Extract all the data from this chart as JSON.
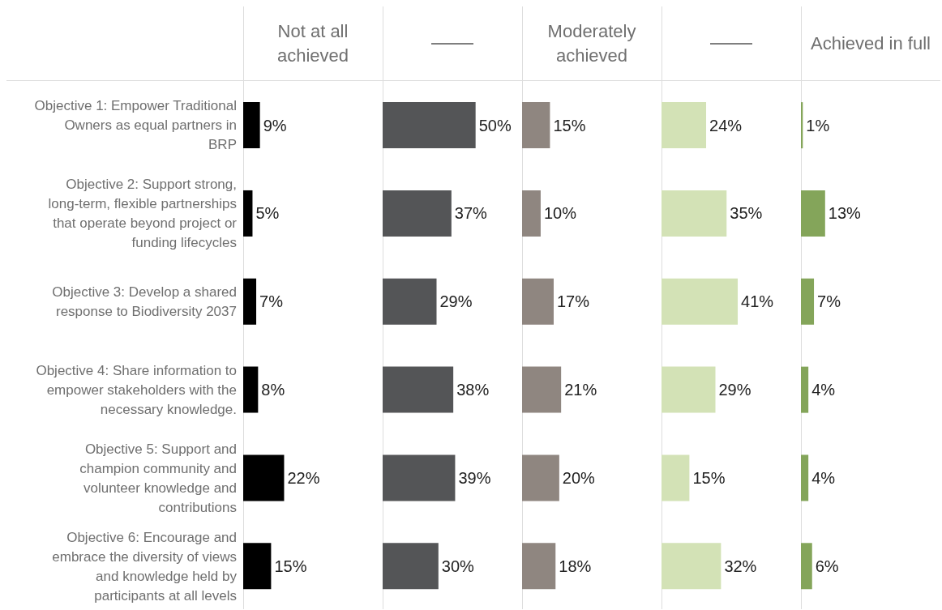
{
  "chart_data": [
    {
      "type": "bar",
      "orientation": "horizontal",
      "title": "Not at all achieved",
      "tick_labels": "y",
      "categories": [
        "Objective 1: Empower Traditional Owners as equal partners in BRP",
        "Objective 2: Support strong, long-term, flexible partnerships that operate beyond project or funding lifecycles",
        "Objective 3: Develop a shared response to Biodiversity 2037",
        "Objective 4: Share information to empower stakeholders with the necessary knowledge.",
        "Objective 5: Support and champion community and volunteer knowledge and contributions",
        "Objective 6: Encourage and embrace the diversity of views and knowledge held by participants at all levels"
      ],
      "values": [
        9,
        5,
        7,
        8,
        22,
        15
      ],
      "value_labels": [
        "9%",
        "5%",
        "7%",
        "8%",
        "22%",
        "15%"
      ],
      "color": "#000000",
      "xlim": [
        0,
        75
      ]
    },
    {
      "type": "bar",
      "orientation": "horizontal",
      "tick_labels": false,
      "values": [
        50,
        37,
        29,
        38,
        39,
        30
      ],
      "value_labels": [
        "50%",
        "37%",
        "29%",
        "38%",
        "39%",
        "30%"
      ],
      "color": "#545557",
      "xlim": [
        0,
        75
      ]
    },
    {
      "type": "bar",
      "orientation": "horizontal",
      "title": "Moderately achieved",
      "tick_labels": false,
      "values": [
        15,
        10,
        17,
        21,
        20,
        18
      ],
      "value_labels": [
        "15%",
        "10%",
        "17%",
        "21%",
        "20%",
        "18%"
      ],
      "color": "#8f8680",
      "xlim": [
        0,
        75
      ]
    },
    {
      "type": "bar",
      "orientation": "horizontal",
      "tick_labels": false,
      "values": [
        24,
        35,
        41,
        29,
        15,
        32
      ],
      "value_labels": [
        "24%",
        "35%",
        "41%",
        "29%",
        "15%",
        "32%"
      ],
      "color": "#d3e2b6",
      "xlim": [
        0,
        75
      ]
    },
    {
      "type": "bar",
      "orientation": "horizontal",
      "title": "Achieved in full",
      "tick_labels": false,
      "values": [
        1,
        13,
        7,
        4,
        4,
        6
      ],
      "value_labels": [
        "1%",
        "13%",
        "7%",
        "4%",
        "4%",
        "6%"
      ],
      "color": "#84a55a",
      "xlim": [
        0,
        75
      ]
    }
  ]
}
